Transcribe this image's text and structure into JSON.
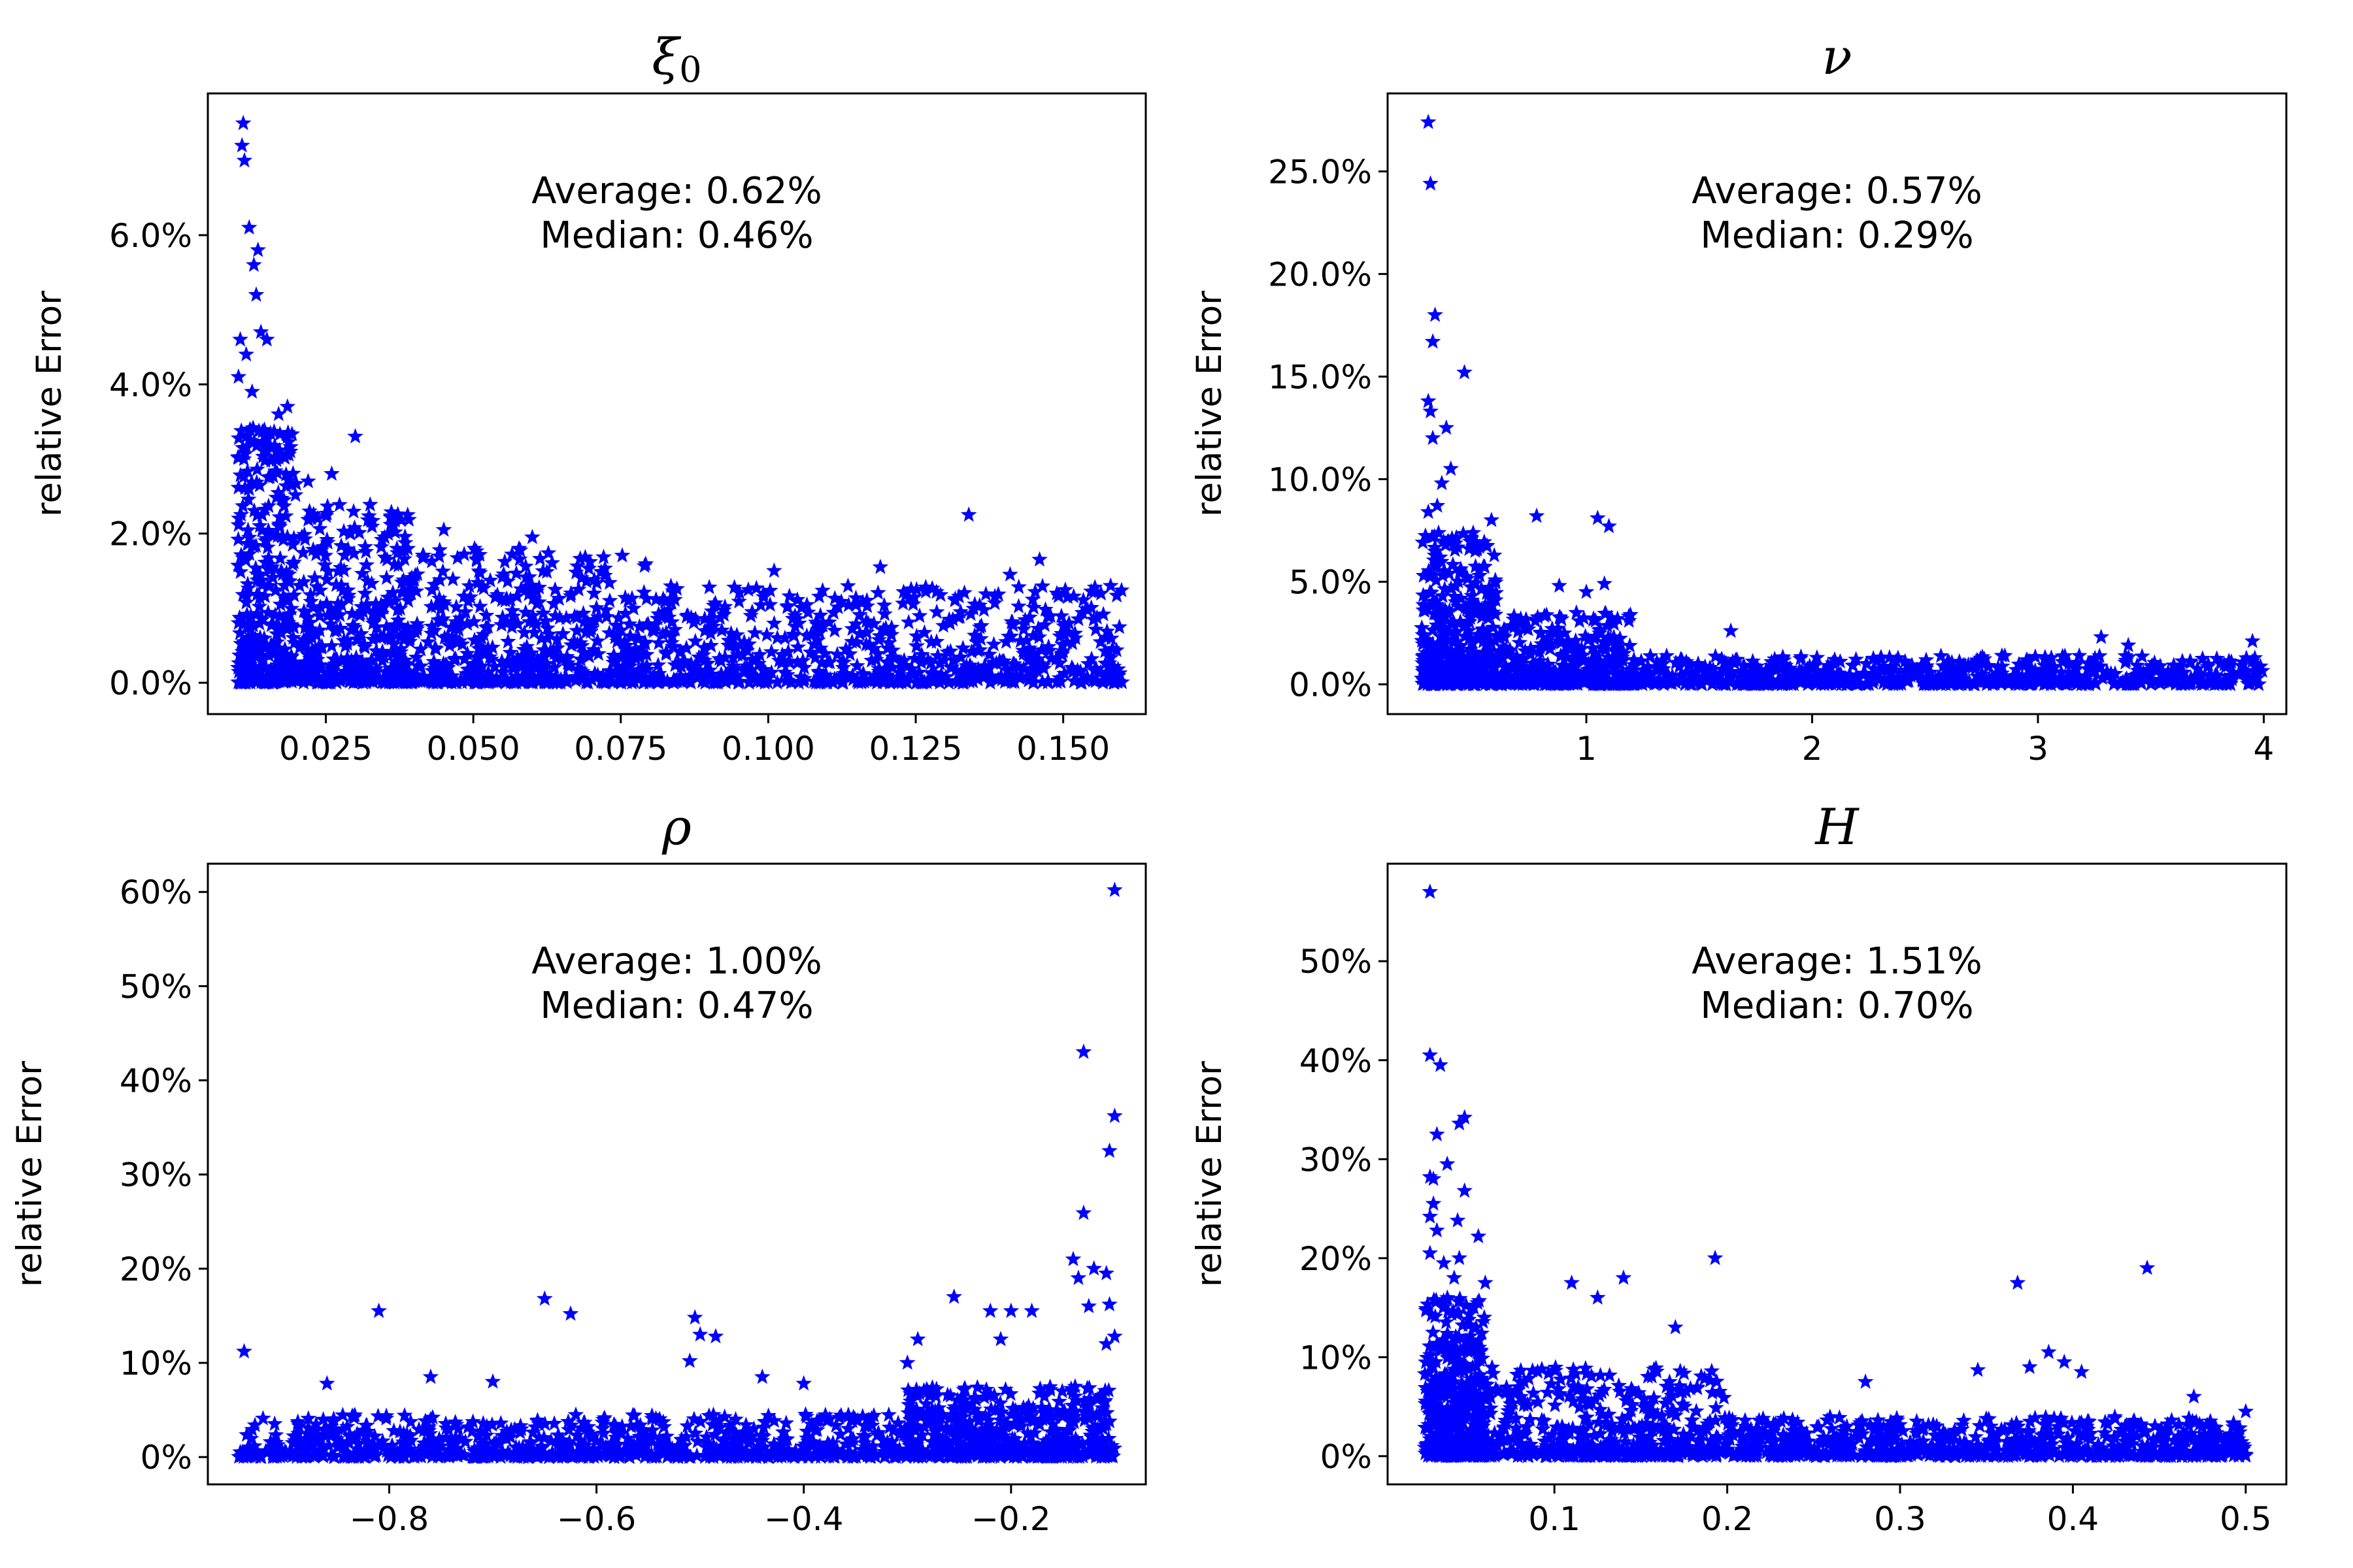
{
  "figure": {
    "marker_color": "#0000ff"
  },
  "chart_data": [
    {
      "type": "scatter",
      "title": "ξ",
      "title_sub": "0",
      "ylabel": "relative Error",
      "xlabel": "",
      "xlim": [
        0.005,
        0.164
      ],
      "ylim": [
        -0.0042,
        0.079
      ],
      "xticks": [
        0.025,
        0.05,
        0.075,
        0.1,
        0.125,
        0.15
      ],
      "xtick_labels": [
        "0.025",
        "0.050",
        "0.075",
        "0.100",
        "0.125",
        "0.150"
      ],
      "yticks": [
        0,
        0.02,
        0.04,
        0.06
      ],
      "ytick_labels": [
        "0.0%",
        "2.0%",
        "4.0%",
        "6.0%"
      ],
      "annotation_average": "Average: 0.62%",
      "annotation_median": "Median:   0.46%",
      "points": [
        [
          0.011,
          0.075
        ],
        [
          0.0108,
          0.072
        ],
        [
          0.0112,
          0.07
        ],
        [
          0.012,
          0.061
        ],
        [
          0.0135,
          0.058
        ],
        [
          0.0128,
          0.056
        ],
        [
          0.0132,
          0.052
        ],
        [
          0.014,
          0.047
        ],
        [
          0.015,
          0.046
        ],
        [
          0.0105,
          0.046
        ],
        [
          0.0115,
          0.044
        ],
        [
          0.0102,
          0.041
        ],
        [
          0.0125,
          0.039
        ],
        [
          0.0185,
          0.037
        ],
        [
          0.017,
          0.036
        ],
        [
          0.03,
          0.033
        ],
        [
          0.0142,
          0.0225
        ],
        [
          0.0138,
          0.002
        ],
        [
          0.0145,
          0.0
        ],
        [
          0.134,
          0.0225
        ],
        [
          0.146,
          0.0165
        ],
        [
          0.141,
          0.0145
        ],
        [
          0.119,
          0.0155
        ],
        [
          0.101,
          0.015
        ],
        [
          0.06,
          0.0195
        ],
        [
          0.045,
          0.0205
        ],
        [
          0.026,
          0.028
        ],
        [
          0.022,
          0.027
        ],
        [
          0.019,
          0.031
        ]
      ],
      "cloud": [
        {
          "x0": 0.01,
          "x1": 0.02,
          "y0": 0.0,
          "y1": 0.035,
          "n": 350
        },
        {
          "x0": 0.02,
          "x1": 0.04,
          "y0": 0.0,
          "y1": 0.024,
          "n": 380
        },
        {
          "x0": 0.04,
          "x1": 0.08,
          "y0": 0.0,
          "y1": 0.018,
          "n": 500
        },
        {
          "x0": 0.08,
          "x1": 0.16,
          "y0": 0.0,
          "y1": 0.013,
          "n": 650
        }
      ]
    },
    {
      "type": "scatter",
      "title": "ν",
      "title_sub": "",
      "ylabel": "relative Error",
      "xlabel": "",
      "xlim": [
        0.12,
        4.1
      ],
      "ylim": [
        -0.0145,
        0.288
      ],
      "xticks": [
        1,
        2,
        3,
        4
      ],
      "xtick_labels": [
        "1",
        "2",
        "3",
        "4"
      ],
      "yticks": [
        0,
        0.05,
        0.1,
        0.15,
        0.2,
        0.25
      ],
      "ytick_labels": [
        "0.0%",
        "5.0%",
        "10.0%",
        "15.0%",
        "20.0%",
        "25.0%"
      ],
      "annotation_average": "Average: 0.57%",
      "annotation_median": "Median:   0.29%",
      "points": [
        [
          0.3,
          0.274
        ],
        [
          0.31,
          0.244
        ],
        [
          0.33,
          0.18
        ],
        [
          0.32,
          0.167
        ],
        [
          0.3,
          0.138
        ],
        [
          0.31,
          0.133
        ],
        [
          0.46,
          0.152
        ],
        [
          0.38,
          0.125
        ],
        [
          0.32,
          0.12
        ],
        [
          0.36,
          0.098
        ],
        [
          0.4,
          0.105
        ],
        [
          0.34,
          0.087
        ],
        [
          0.3,
          0.084
        ],
        [
          0.58,
          0.08
        ],
        [
          0.78,
          0.082
        ],
        [
          1.05,
          0.081
        ],
        [
          1.1,
          0.077
        ],
        [
          0.88,
          0.048
        ],
        [
          1.0,
          0.045
        ],
        [
          1.08,
          0.049
        ],
        [
          1.64,
          0.026
        ],
        [
          3.28,
          0.023
        ],
        [
          3.4,
          0.019
        ],
        [
          3.95,
          0.021
        ],
        [
          2.1,
          0.012
        ],
        [
          2.6,
          0.011
        ]
      ],
      "cloud": [
        {
          "x0": 0.27,
          "x1": 0.6,
          "y0": 0.0,
          "y1": 0.075,
          "n": 400
        },
        {
          "x0": 0.6,
          "x1": 1.2,
          "y0": 0.0,
          "y1": 0.035,
          "n": 350
        },
        {
          "x0": 1.2,
          "x1": 4.0,
          "y0": 0.0,
          "y1": 0.014,
          "n": 700
        }
      ]
    },
    {
      "type": "scatter",
      "title": "ρ",
      "title_sub": "",
      "ylabel": "relative Error",
      "xlabel": "",
      "xlim": [
        -0.975,
        -0.07
      ],
      "ylim": [
        -0.029,
        0.63
      ],
      "xticks": [
        -0.8,
        -0.6,
        -0.4,
        -0.2
      ],
      "xtick_labels": [
        "−0.8",
        "−0.6",
        "−0.4",
        "−0.2"
      ],
      "yticks": [
        0,
        0.1,
        0.2,
        0.3,
        0.4,
        0.5,
        0.6
      ],
      "ytick_labels": [
        "0%",
        "10%",
        "20%",
        "30%",
        "40%",
        "50%",
        "60%"
      ],
      "annotation_average": "Average: 1.00%",
      "annotation_median": "Median:   0.47%",
      "points": [
        [
          -0.1,
          0.602
        ],
        [
          -0.13,
          0.43
        ],
        [
          -0.1,
          0.362
        ],
        [
          -0.105,
          0.325
        ],
        [
          -0.13,
          0.259
        ],
        [
          -0.14,
          0.21
        ],
        [
          -0.12,
          0.2
        ],
        [
          -0.108,
          0.195
        ],
        [
          -0.135,
          0.19
        ],
        [
          -0.105,
          0.162
        ],
        [
          -0.125,
          0.16
        ],
        [
          -0.18,
          0.155
        ],
        [
          -0.2,
          0.155
        ],
        [
          -0.22,
          0.155
        ],
        [
          -0.255,
          0.17
        ],
        [
          -0.1,
          0.128
        ],
        [
          -0.108,
          0.12
        ],
        [
          -0.21,
          0.125
        ],
        [
          -0.29,
          0.125
        ],
        [
          -0.94,
          0.112
        ],
        [
          -0.81,
          0.155
        ],
        [
          -0.65,
          0.168
        ],
        [
          -0.625,
          0.152
        ],
        [
          -0.505,
          0.148
        ],
        [
          -0.5,
          0.13
        ],
        [
          -0.485,
          0.128
        ],
        [
          -0.51,
          0.102
        ],
        [
          -0.44,
          0.085
        ],
        [
          -0.4,
          0.078
        ],
        [
          -0.3,
          0.1
        ],
        [
          -0.86,
          0.078
        ],
        [
          -0.76,
          0.085
        ],
        [
          -0.7,
          0.08
        ]
      ],
      "cloud": [
        {
          "x0": -0.95,
          "x1": -0.3,
          "y0": 0.0,
          "y1": 0.045,
          "n": 800
        },
        {
          "x0": -0.3,
          "x1": -0.1,
          "y0": 0.0,
          "y1": 0.075,
          "n": 500
        }
      ]
    },
    {
      "type": "scatter",
      "title": "H",
      "title_sub": "",
      "ylabel": "relative Error",
      "xlabel": "",
      "xlim": [
        0.0035,
        0.5235
      ],
      "ylim": [
        -0.0285,
        0.5985
      ],
      "xticks": [
        0.1,
        0.2,
        0.3,
        0.4,
        0.5
      ],
      "xtick_labels": [
        "0.1",
        "0.2",
        "0.3",
        "0.4",
        "0.5"
      ],
      "yticks": [
        0,
        0.1,
        0.2,
        0.3,
        0.4,
        0.5
      ],
      "ytick_labels": [
        "0%",
        "10%",
        "20%",
        "30%",
        "40%",
        "50%"
      ],
      "annotation_average": "Average: 1.51%",
      "annotation_median": "Median:   0.70%",
      "points": [
        [
          0.028,
          0.57
        ],
        [
          0.028,
          0.405
        ],
        [
          0.034,
          0.395
        ],
        [
          0.048,
          0.342
        ],
        [
          0.045,
          0.336
        ],
        [
          0.032,
          0.325
        ],
        [
          0.038,
          0.295
        ],
        [
          0.028,
          0.282
        ],
        [
          0.03,
          0.28
        ],
        [
          0.048,
          0.268
        ],
        [
          0.03,
          0.255
        ],
        [
          0.028,
          0.242
        ],
        [
          0.044,
          0.238
        ],
        [
          0.032,
          0.228
        ],
        [
          0.056,
          0.222
        ],
        [
          0.028,
          0.205
        ],
        [
          0.036,
          0.195
        ],
        [
          0.045,
          0.2
        ],
        [
          0.042,
          0.18
        ],
        [
          0.06,
          0.175
        ],
        [
          0.11,
          0.175
        ],
        [
          0.14,
          0.18
        ],
        [
          0.125,
          0.16
        ],
        [
          0.17,
          0.13
        ],
        [
          0.193,
          0.2
        ],
        [
          0.368,
          0.175
        ],
        [
          0.443,
          0.19
        ],
        [
          0.386,
          0.105
        ],
        [
          0.395,
          0.095
        ],
        [
          0.345,
          0.087
        ],
        [
          0.375,
          0.09
        ],
        [
          0.28,
          0.075
        ],
        [
          0.405,
          0.085
        ],
        [
          0.47,
          0.06
        ],
        [
          0.5,
          0.045
        ]
      ],
      "cloud": [
        {
          "x0": 0.025,
          "x1": 0.06,
          "y0": 0.0,
          "y1": 0.16,
          "n": 420
        },
        {
          "x0": 0.06,
          "x1": 0.2,
          "y0": 0.0,
          "y1": 0.09,
          "n": 450
        },
        {
          "x0": 0.2,
          "x1": 0.5,
          "y0": 0.0,
          "y1": 0.04,
          "n": 700
        }
      ]
    }
  ]
}
